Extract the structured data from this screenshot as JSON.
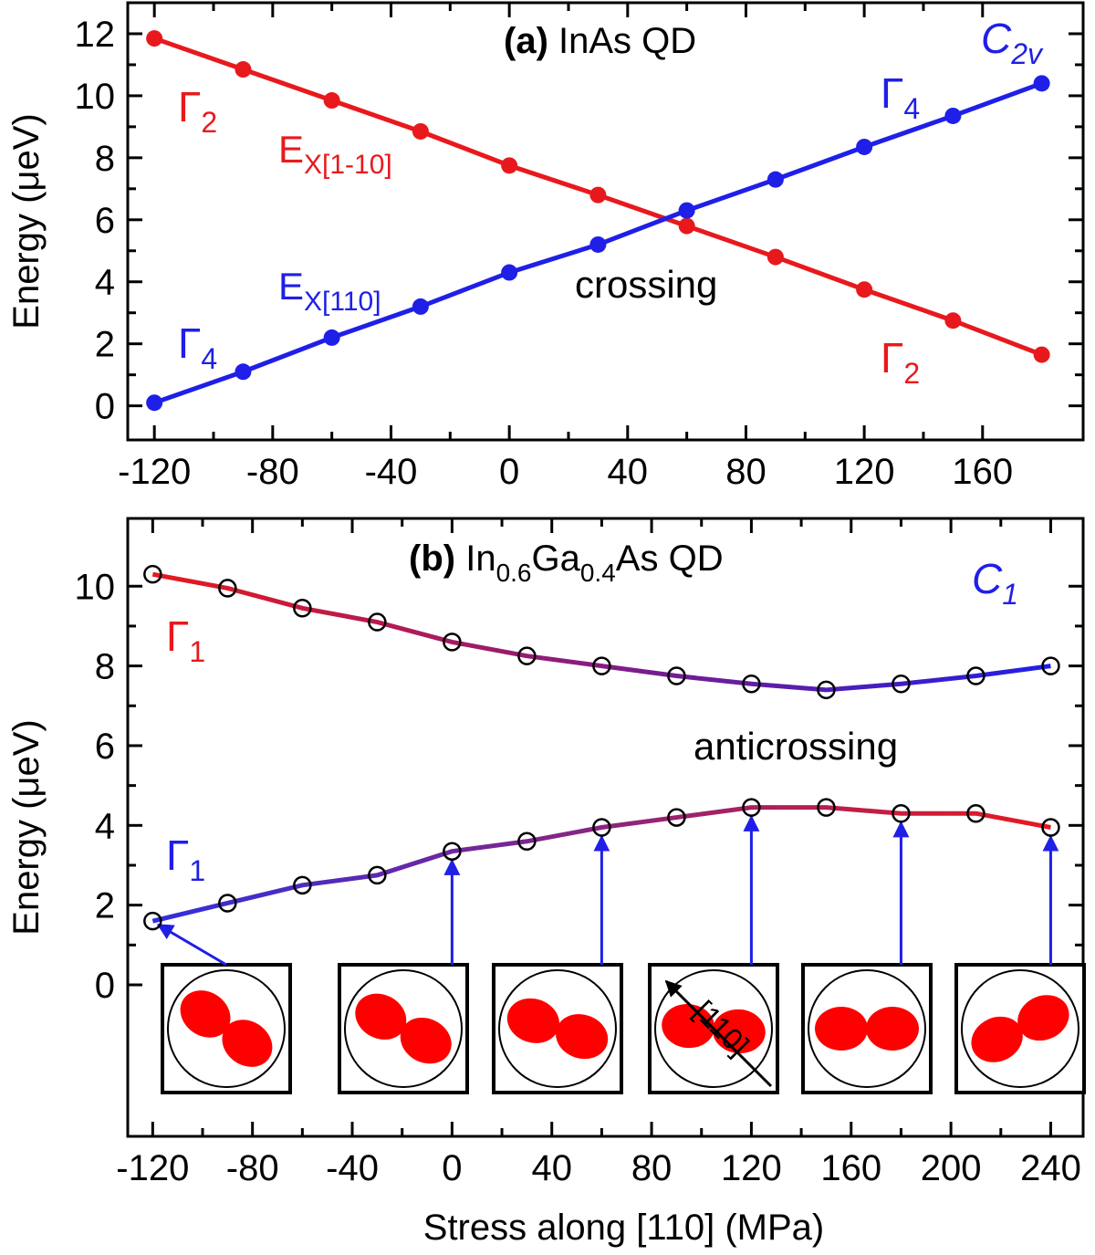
{
  "chart_data": [
    {
      "type": "line",
      "label": "(a)",
      "title": [
        "InAs QD"
      ],
      "ylabel": "Energy (μeV)",
      "marker": "filled",
      "x": [
        -120,
        -90,
        -60,
        -30,
        0,
        30,
        60,
        90,
        120,
        150,
        180
      ],
      "series": [
        {
          "color": "#e8191d",
          "values": [
            11.85,
            10.85,
            9.85,
            8.85,
            7.75,
            6.8,
            5.8,
            4.8,
            3.75,
            2.75,
            1.65
          ]
        },
        {
          "color": "#1f1fe8",
          "values": [
            0.1,
            1.1,
            2.2,
            3.2,
            4.3,
            5.2,
            6.3,
            7.3,
            8.35,
            9.35,
            10.4
          ]
        }
      ],
      "xlim": [
        -129,
        194
      ],
      "ylim": [
        -1.1,
        13.0
      ],
      "xticks": [
        -120,
        -80,
        -40,
        0,
        40,
        80,
        120,
        160
      ],
      "yticks": [
        0,
        2,
        4,
        6,
        8,
        10,
        12
      ],
      "annotations": [
        {
          "text": "C",
          "sub": "2v",
          "color": "#1f1fe8",
          "font": "serif-italic"
        },
        {
          "text": "Γ",
          "sub": "2",
          "color": "#e8191d",
          "font": "serif"
        },
        {
          "text": "E",
          "sub": "X[1-10]",
          "color": "#e8191d",
          "font": "sans"
        },
        {
          "text": "E",
          "sub": "X[110]",
          "color": "#1f1fe8",
          "font": "sans"
        },
        {
          "text": "crossing",
          "color": "#000000",
          "font": "sans"
        },
        {
          "text": "Γ",
          "sub": "4",
          "color": "#1f1fe8",
          "font": "serif"
        },
        {
          "text": "Γ",
          "sub": "2",
          "color": "#e8191d",
          "font": "serif"
        },
        {
          "text": "Γ",
          "sub": "4",
          "color": "#1f1fe8",
          "font": "serif"
        }
      ]
    },
    {
      "type": "line",
      "label": "(b)",
      "title": [
        "In",
        "0.6",
        "Ga",
        "0.4",
        "As QD"
      ],
      "ylabel": "Energy (μeV)",
      "xlabel": "Stress along [110] (MPa)",
      "marker": "open",
      "x": [
        -120,
        -90,
        -60,
        -30,
        0,
        30,
        60,
        90,
        120,
        150,
        180,
        210,
        240
      ],
      "series": [
        {
          "colors": [
            "#e8191d",
            "#1f1fe8"
          ],
          "values": [
            10.3,
            9.95,
            9.45,
            9.1,
            8.6,
            8.25,
            8.0,
            7.75,
            7.55,
            7.4,
            7.55,
            7.75,
            8.0
          ]
        },
        {
          "colors": [
            "#2f2fe0",
            "#e8191d"
          ],
          "values": [
            1.6,
            2.05,
            2.5,
            2.75,
            3.35,
            3.6,
            3.95,
            4.2,
            4.45,
            4.45,
            4.3,
            4.3,
            3.95
          ]
        }
      ],
      "xlim": [
        -130,
        253
      ],
      "ylim": [
        -3.8,
        11.7
      ],
      "xticks": [
        -120,
        -80,
        -40,
        0,
        40,
        80,
        120,
        160,
        200,
        240
      ],
      "yticks": [
        0,
        2,
        4,
        6,
        8,
        10
      ],
      "inset_label": "[110]",
      "annotations": [
        {
          "text": "C",
          "sub": "1",
          "color": "#1f1fe8",
          "font": "serif-italic"
        },
        {
          "text": "Γ",
          "sub": "1",
          "color": "#e8191d",
          "font": "serif"
        },
        {
          "text": "anticrossing",
          "color": "#000000",
          "font": "sans"
        },
        {
          "text": "Γ",
          "sub": "1",
          "color": "#1f1fe8",
          "font": "serif"
        }
      ]
    }
  ]
}
